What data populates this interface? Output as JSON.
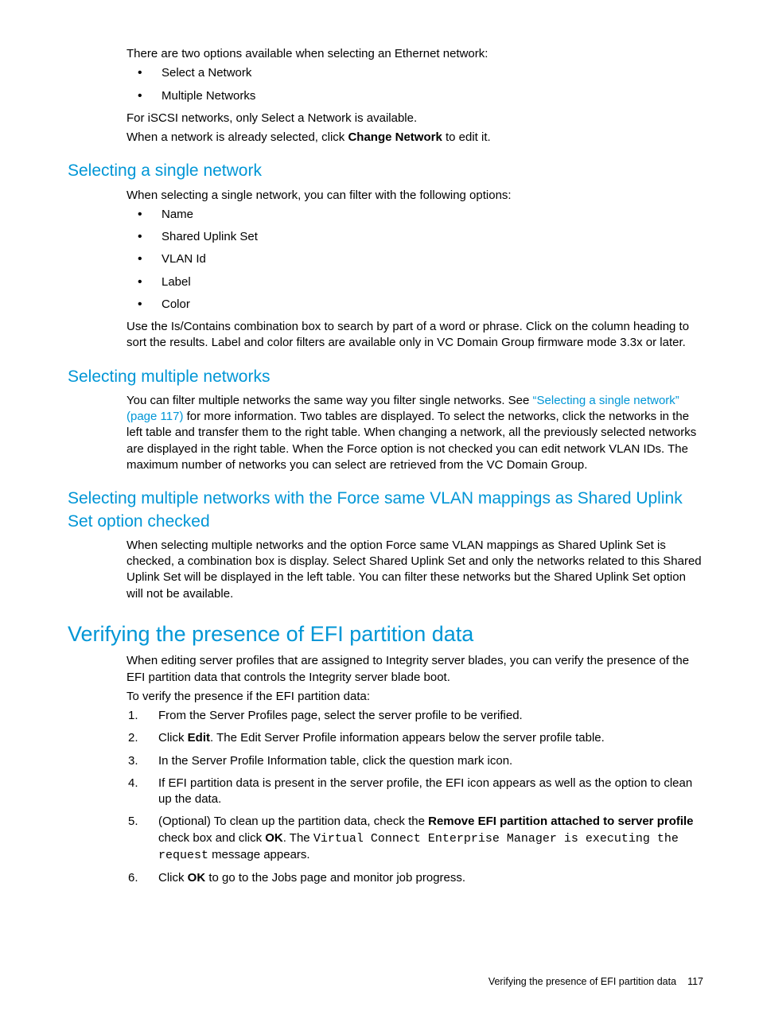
{
  "colors": {
    "heading": "#0096d6",
    "link": "#0096d6",
    "text": "#000000",
    "background": "#ffffff"
  },
  "intro": {
    "line1": "There are two options available when selecting an Ethernet network:",
    "options": [
      "Select a Network",
      "Multiple Networks"
    ],
    "line2": "For iSCSI networks, only Select a Network is available.",
    "line3_pre": "When a network is already selected, click ",
    "line3_bold": "Change Network",
    "line3_post": " to edit it."
  },
  "single": {
    "heading": "Selecting a single network",
    "p1": "When selecting a single network, you can filter with the following options:",
    "filters": [
      "Name",
      "Shared Uplink Set",
      "VLAN Id",
      "Label",
      "Color"
    ],
    "p2": "Use the Is/Contains combination box to search by part of a word or phrase. Click on the column heading to sort the results.  Label and color filters are available only in VC Domain Group firmware mode 3.3x or later."
  },
  "multiple": {
    "heading": "Selecting multiple networks",
    "p1_pre": "You can filter multiple networks the same way you filter single networks. See ",
    "p1_link": "“Selecting a single network” (page 117)",
    "p1_post": " for more information. Two tables are displayed. To select the networks, click the networks in the left table and transfer them to the right table. When changing a network, all the previously selected networks are displayed in the right table. When the Force option is not checked you can edit network VLAN IDs. The maximum number of networks you can select are retrieved from the VC Domain Group."
  },
  "force": {
    "heading": "Selecting multiple networks with the Force same VLAN mappings as Shared Uplink Set option checked",
    "p1": "When selecting multiple networks and the option Force same VLAN mappings as Shared Uplink Set is checked, a combination box is display. Select Shared Uplink Set and only the networks related to this Shared Uplink Set will be displayed in the left table. You can filter these networks but the Shared Uplink Set option will not be available."
  },
  "efi": {
    "heading": "Verifying the presence of EFI partition data",
    "p1": "When editing server profiles that are assigned to Integrity server blades, you can verify the presence of the EFI partition data that controls the Integrity server blade boot.",
    "p2": "To verify the presence if the EFI partition data:",
    "steps": {
      "s1": "From the Server Profiles page, select the server profile to be verified.",
      "s2_pre": "Click ",
      "s2_bold": "Edit",
      "s2_post": ". The Edit Server Profile information appears below the server profile table.",
      "s3": "In the Server Profile Information table, click the question mark icon.",
      "s4": "If EFI partition data is present in the server profile, the EFI icon appears as well as the option to clean up the data.",
      "s5_pre": "(Optional) To clean up the partition data, check the ",
      "s5_bold1": "Remove EFI partition attached to server profile",
      "s5_mid": " check box and click ",
      "s5_bold2": "OK",
      "s5_post1": ". The ",
      "s5_mono": "Virtual Connect Enterprise Manager is executing the request",
      "s5_post2": " message appears.",
      "s6_pre": "Click ",
      "s6_bold": "OK",
      "s6_post": " to go to the Jobs page and monitor job progress."
    }
  },
  "footer": {
    "title": "Verifying the presence of EFI partition data",
    "page": "117"
  }
}
